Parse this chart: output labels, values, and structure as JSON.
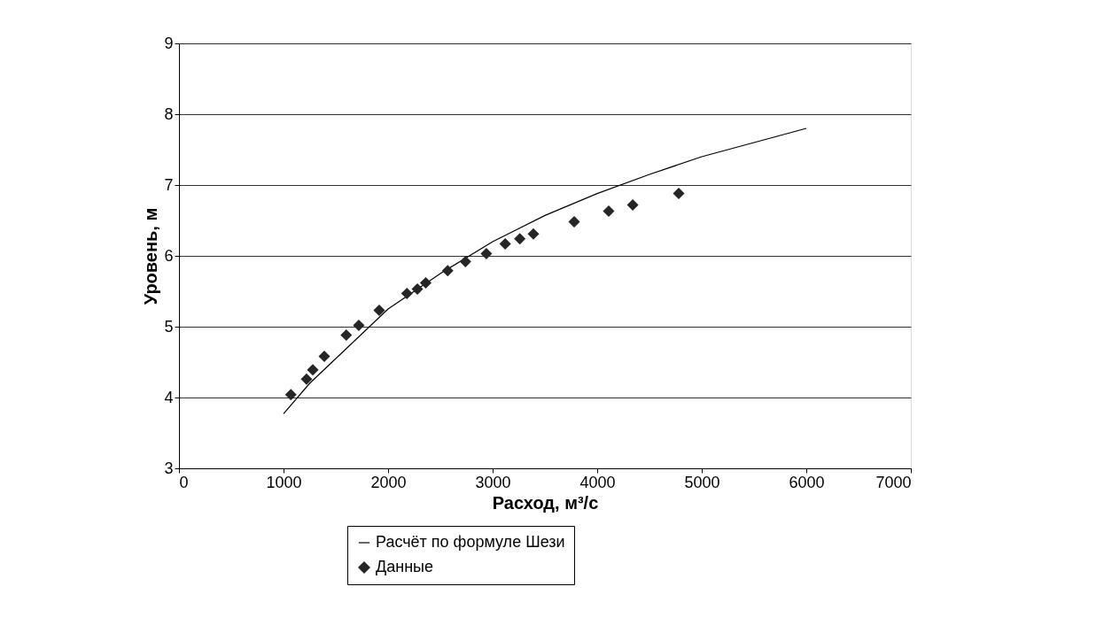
{
  "chart_data": {
    "type": "scatter",
    "xlabel": "Расход, м³/с",
    "ylabel": "Уровень, м",
    "xlim": [
      0,
      7000
    ],
    "xticks": [
      0,
      1000,
      2000,
      3000,
      4000,
      5000,
      6000,
      7000
    ],
    "ylim": [
      3,
      9
    ],
    "yticks": [
      3,
      4,
      5,
      6,
      7,
      8,
      9
    ],
    "grid": "y",
    "legend": "bottom",
    "series": [
      {
        "name": "Расчёт по формуле Шези",
        "type": "line",
        "color": "#000000",
        "marker": "none",
        "line_style": "solid",
        "x": [
          1000,
          1250,
          1500,
          1750,
          2000,
          2250,
          2500,
          3000,
          3500,
          4000,
          4500,
          5000,
          5500,
          6000
        ],
        "values": [
          3.77,
          4.2,
          4.55,
          4.9,
          5.25,
          5.5,
          5.75,
          6.2,
          6.57,
          6.88,
          7.15,
          7.4,
          7.6,
          7.8
        ]
      },
      {
        "name": "Данные",
        "color": "#262626",
        "marker": "diamond",
        "x": [
          1070,
          1220,
          1280,
          1390,
          1600,
          1720,
          1915,
          2180,
          2280,
          2360,
          2570,
          2740,
          2940,
          3120,
          3260,
          3390,
          3780,
          4110,
          4340,
          4780
        ],
        "values": [
          4.04,
          4.26,
          4.39,
          4.58,
          4.88,
          5.02,
          5.23,
          5.47,
          5.53,
          5.62,
          5.79,
          5.92,
          6.03,
          6.17,
          6.24,
          6.31,
          6.48,
          6.63,
          6.72,
          6.88
        ]
      }
    ]
  }
}
